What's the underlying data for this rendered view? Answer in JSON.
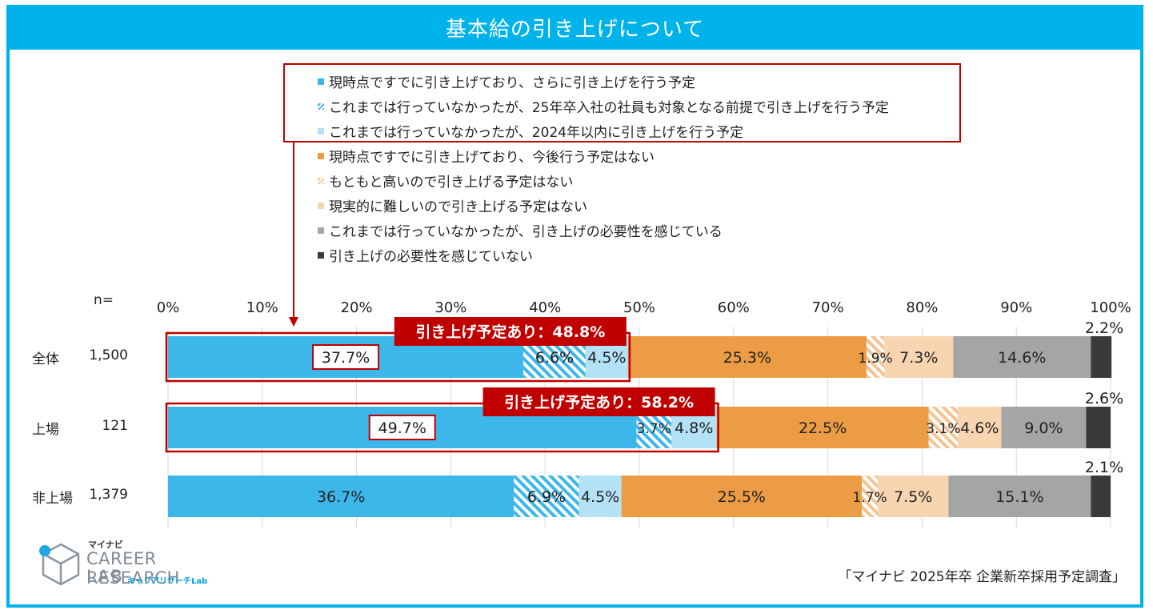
{
  "title": "基本給の引き上げについて",
  "source": "「マイナビ 2025年卒 企業新卒採用予定調査」",
  "logo": {
    "brand": "マイナビ",
    "line1": "CAREER RESEARCH",
    "line2": "LAB",
    "sub": "キャリアリサーチLab"
  },
  "n_label": "n=",
  "rows": [
    {
      "label": "全体",
      "n": "1,500"
    },
    {
      "label": "上場",
      "n": "121"
    },
    {
      "label": "非上場",
      "n": "1,379"
    }
  ],
  "colors": {
    "frame": "#00b2ea",
    "highlight": "#c00000"
  },
  "chart_data": {
    "type": "bar",
    "orientation": "horizontal",
    "stacked": true,
    "percent_stacked": true,
    "categories": [
      "全体 1,500",
      "上場 121",
      "非上場 1,379"
    ],
    "xlim": [
      0,
      100
    ],
    "x_ticks": [
      "0%",
      "10%",
      "20%",
      "30%",
      "40%",
      "50%",
      "60%",
      "70%",
      "80%",
      "90%",
      "100%"
    ],
    "grid": "vertical",
    "legend_position": "top",
    "series": [
      {
        "name": "現時点ですでに引き上げており、さらに引き上げを行う予定",
        "color": "#3db7e9",
        "pattern": "solid",
        "values": [
          37.7,
          49.7,
          36.7
        ],
        "labels": [
          "37.7%",
          "49.7%",
          "36.7%"
        ]
      },
      {
        "name": "これまでは行っていなかったが、25年卒入社の社員も対象となる前提で引き上げを行う予定",
        "color": "#3db7e9",
        "pattern": "hatch",
        "values": [
          6.6,
          3.7,
          6.9
        ],
        "labels": [
          "6.6%",
          "3.7%",
          "6.9%"
        ]
      },
      {
        "name": "これまでは行っていなかったが、2024年以内に引き上げを行う予定",
        "color": "#b3e1f6",
        "pattern": "solid",
        "values": [
          4.5,
          4.8,
          4.5
        ],
        "labels": [
          "4.5%",
          "4.8%",
          "4.5%"
        ]
      },
      {
        "name": "現時点ですでに引き上げており、今後行う予定はない",
        "color": "#eb9c44",
        "pattern": "solid",
        "values": [
          25.3,
          22.5,
          25.5
        ],
        "labels": [
          "25.3%",
          "22.5%",
          "25.5%"
        ]
      },
      {
        "name": "もともと高いので引き上げる予定はない",
        "color": "#f4c392",
        "pattern": "hatch",
        "values": [
          1.9,
          3.1,
          1.7
        ],
        "labels": [
          "1.9%",
          "3.1%",
          "1.7%"
        ]
      },
      {
        "name": "現実的に難しいので引き上げる予定はない",
        "color": "#f8d5b1",
        "pattern": "solid",
        "values": [
          7.3,
          4.6,
          7.5
        ],
        "labels": [
          "7.3%",
          "4.6%",
          "7.5%"
        ]
      },
      {
        "name": "これまでは行っていなかったが、引き上げの必要性を感じている",
        "color": "#a5a5a5",
        "pattern": "solid",
        "values": [
          14.6,
          9.0,
          15.1
        ],
        "labels": [
          "14.6%",
          "9.0%",
          "15.1%"
        ]
      },
      {
        "name": "引き上げの必要性を感じていない",
        "color": "#3a3a3a",
        "pattern": "solid",
        "values": [
          2.2,
          2.6,
          2.1
        ],
        "labels": [
          "2.2%",
          "2.6%",
          "2.1%"
        ]
      }
    ],
    "annotations": [
      {
        "row": 0,
        "text": "引き上げ予定あり：48.8%",
        "value": 48.8
      },
      {
        "row": 1,
        "text": "引き上げ予定あり：58.2%",
        "value": 58.2
      }
    ]
  }
}
